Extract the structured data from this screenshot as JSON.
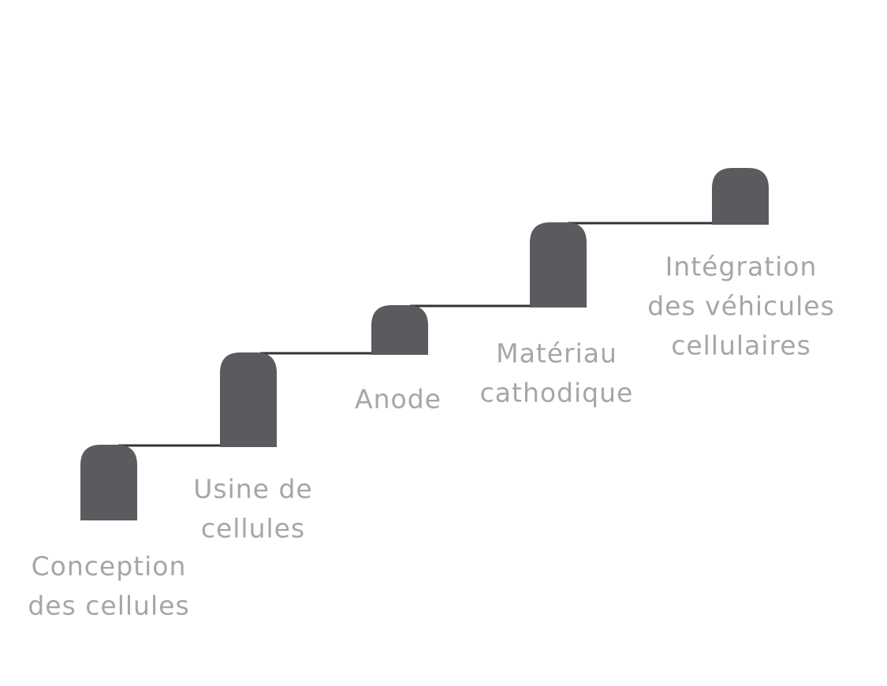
{
  "steps": [
    {
      "label": [
        "Conception",
        "des cellules"
      ]
    },
    {
      "label": [
        "Usine de",
        "cellules"
      ]
    },
    {
      "label": [
        "Anode"
      ]
    },
    {
      "label": [
        "Matériau",
        "cathodique"
      ]
    },
    {
      "label": [
        "Intégration",
        "des véhicules",
        "cellulaires"
      ]
    }
  ]
}
